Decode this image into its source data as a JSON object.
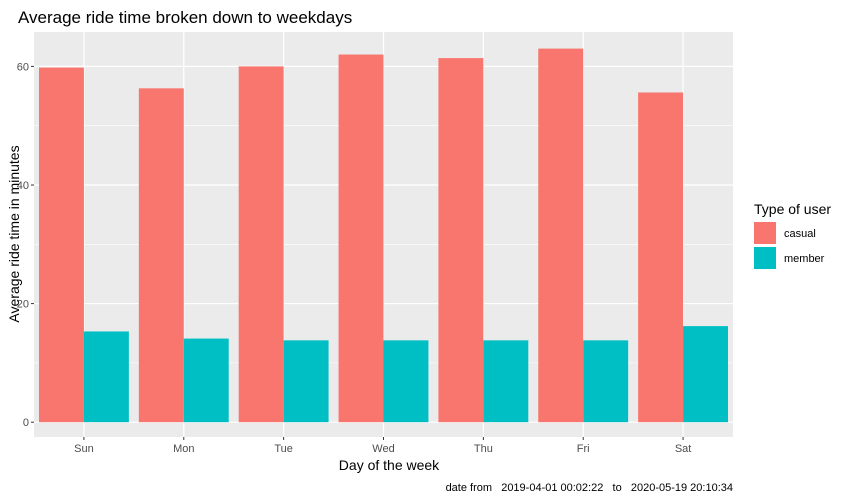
{
  "chart_data": {
    "type": "bar",
    "title": "Average ride time broken down to weekdays",
    "xlabel": "Day of the week",
    "ylabel": "Average ride time in minutes",
    "categories": [
      "Sun",
      "Mon",
      "Tue",
      "Wed",
      "Thu",
      "Fri",
      "Sat"
    ],
    "series": [
      {
        "name": "casual",
        "color": "#F8766D",
        "values": [
          59.8,
          56.3,
          60.0,
          62.0,
          61.4,
          63.0,
          55.6
        ]
      },
      {
        "name": "member",
        "color": "#00BFC4",
        "values": [
          15.3,
          14.1,
          13.8,
          13.8,
          13.8,
          13.8,
          16.2
        ]
      }
    ],
    "ylim": [
      -2.5,
      65.8
    ],
    "yticks": [
      0,
      20,
      40,
      60
    ],
    "legend": {
      "title": "Type of user",
      "position": "right"
    },
    "caption": "date from   2019-04-01 00:02:22   to   2020-05-19 20:10:34",
    "panel_background": "#EBEBEB",
    "grid": true
  }
}
